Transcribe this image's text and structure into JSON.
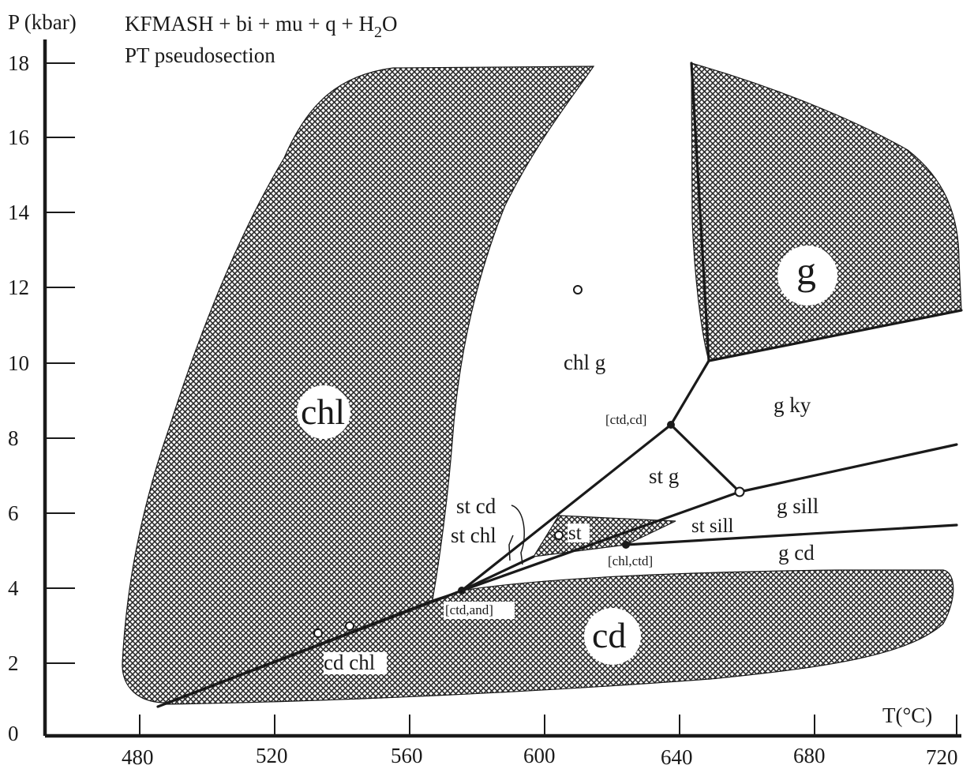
{
  "title_line1": "KFMASH + bi + mu + q + H",
  "title_sub": "2",
  "title_tail": "O",
  "title_line2": "PT pseudosection",
  "y_axis_title": "P (kbar)",
  "x_axis_title": "T(°C)",
  "y_ticks": [
    "0",
    "2",
    "4",
    "6",
    "8",
    "10",
    "12",
    "14",
    "16",
    "18"
  ],
  "x_ticks": [
    "480",
    "520",
    "560",
    "600",
    "640",
    "680",
    "720"
  ],
  "regions": {
    "chl": "chl",
    "g": "g",
    "cd": "cd"
  },
  "fields": {
    "chl_g": "chl g",
    "g_ky": "g ky",
    "st_g": "st g",
    "g_sill": "g sill",
    "g_cd": "g cd",
    "st_sill": "st sill",
    "st_cd": "st cd",
    "st_chl": "st chl",
    "st": "st",
    "cd_chl": "cd chl"
  },
  "invariant_points": {
    "ctd_cd": "[ctd,cd]",
    "chl_ctd": "[chl,ctd]",
    "ctd_and": "[ctd,and]"
  },
  "colors": {
    "line": "#1a1a1a",
    "hatch": "#2b2b2b",
    "background": "#ffffff"
  }
}
